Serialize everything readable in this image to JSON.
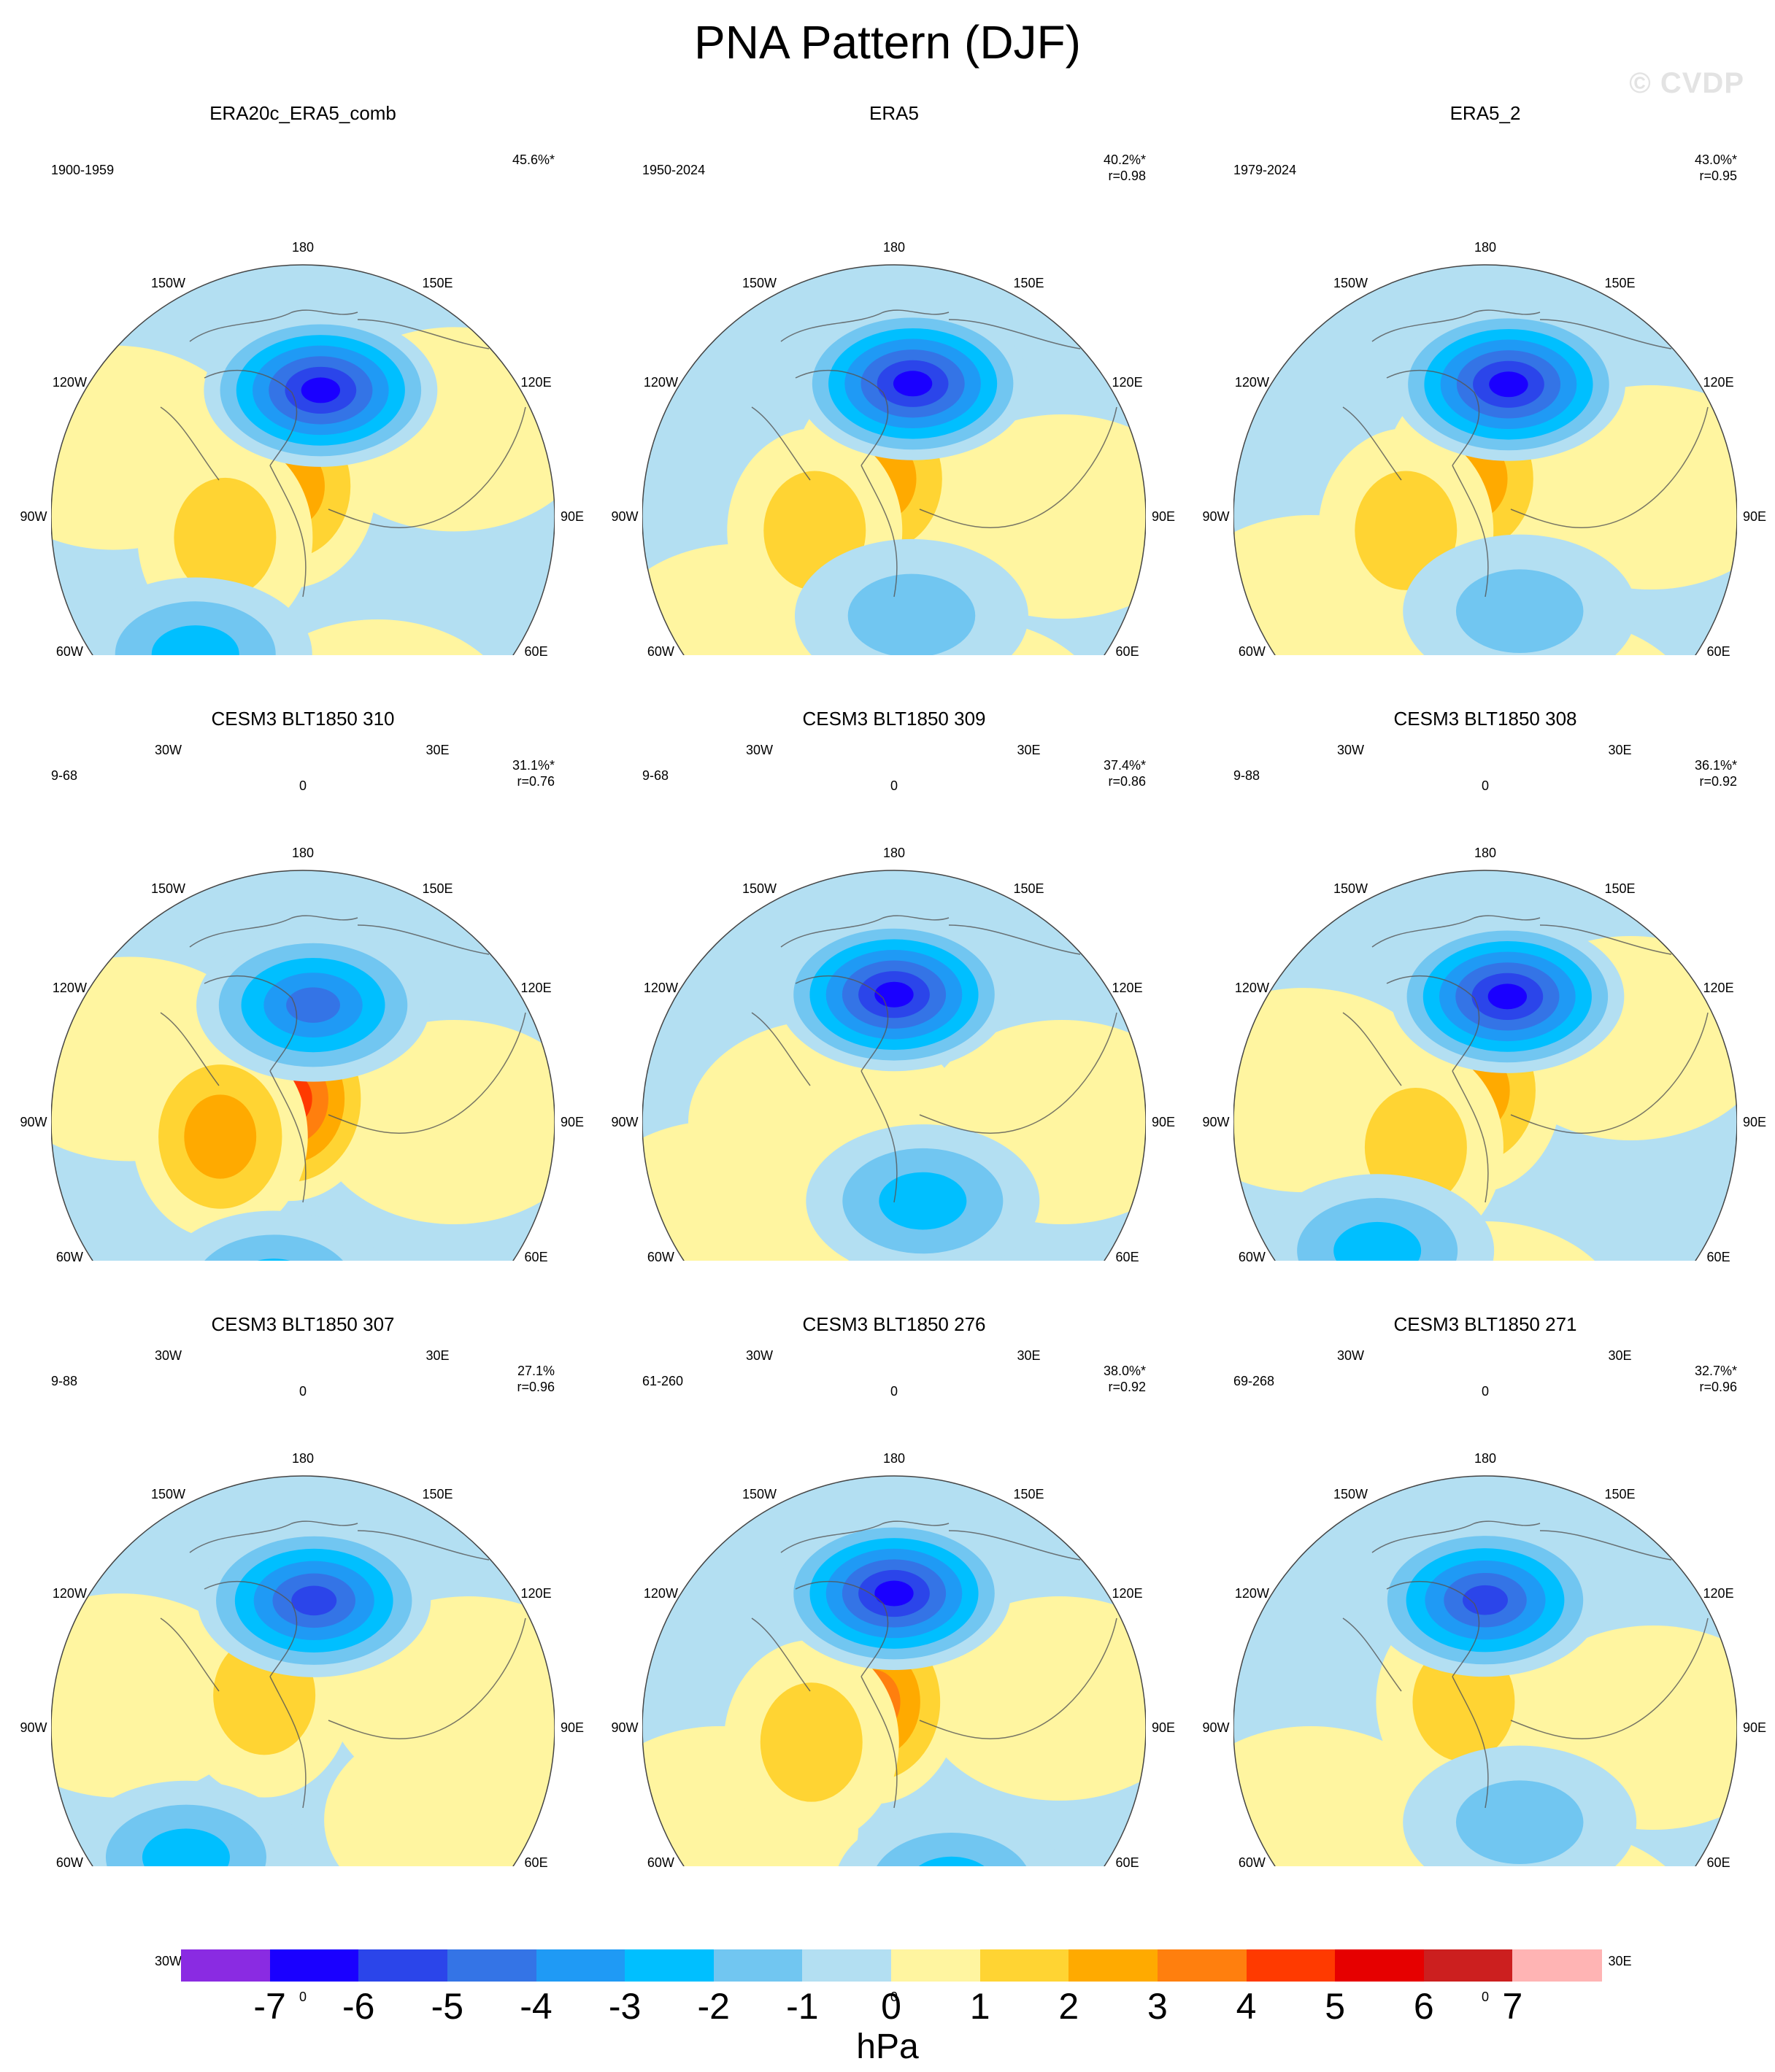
{
  "title": "PNA Pattern (DJF)",
  "watermark": "© CVDP",
  "colors": {
    "neg7": "#8a2be2",
    "neg6": "#1a00ff",
    "neg5": "#2b45ea",
    "neg4": "#3474e6",
    "neg3": "#1f9af5",
    "neg2": "#00bfff",
    "neg1b": "#71c6f1",
    "neg1": "#b3dff2",
    "pos0": "#fff5a0",
    "pos1": "#ffd433",
    "pos2": "#ffaa00",
    "pos3": "#ff7f0e",
    "pos4": "#ff3a00",
    "pos5": "#e60000",
    "pos6": "#cc1f1f",
    "pos7": "#ffb4b4",
    "coast": "#555555"
  },
  "longitude_labels": [
    "180",
    "150E",
    "120E",
    "90E",
    "60E",
    "30E",
    "0",
    "30W",
    "60W",
    "90W",
    "120W",
    "150W"
  ],
  "panels": [
    {
      "title": "ERA20c_ERA5_comb",
      "years": "1900-1959",
      "pct": "45.6%*",
      "corr": "",
      "lows": [
        {
          "lon": 172,
          "lat": 52,
          "level": 6
        },
        {
          "lon": 322,
          "lat": 38,
          "level": 2
        }
      ],
      "highs": [
        {
          "lon": 205,
          "lat": 80,
          "level": 2
        },
        {
          "lon": 285,
          "lat": 66,
          "level": 1
        }
      ],
      "neutral_pos": [
        {
          "lon": 120,
          "lat": 38
        },
        {
          "lon": 250,
          "lat": 30
        },
        {
          "lon": 20,
          "lat": 25
        }
      ]
    },
    {
      "title": "ERA5",
      "years": "1950-2024",
      "pct": "40.2%*",
      "corr": "r=0.98",
      "lows": [
        {
          "lon": 172,
          "lat": 50,
          "level": 6
        },
        {
          "lon": 10,
          "lat": 60,
          "level": 1
        }
      ],
      "highs": [
        {
          "lon": 200,
          "lat": 78,
          "level": 2
        },
        {
          "lon": 280,
          "lat": 66,
          "level": 1
        }
      ],
      "neutral_pos": [
        {
          "lon": 90,
          "lat": 40
        },
        {
          "lon": 310,
          "lat": 30
        },
        {
          "lon": 20,
          "lat": 25
        }
      ]
    },
    {
      "title": "ERA5_2",
      "years": "1979-2024",
      "pct": "43.0%*",
      "corr": "r=0.95",
      "lows": [
        {
          "lon": 170,
          "lat": 50,
          "level": 6
        },
        {
          "lon": 20,
          "lat": 60,
          "level": 1
        }
      ],
      "highs": [
        {
          "lon": 200,
          "lat": 78,
          "level": 2
        },
        {
          "lon": 280,
          "lat": 66,
          "level": 1
        }
      ],
      "neutral_pos": [
        {
          "lon": 100,
          "lat": 40
        },
        {
          "lon": 300,
          "lat": 30
        },
        {
          "lon": 20,
          "lat": 25
        }
      ]
    },
    {
      "title": "CESM3 BLT1850 310",
      "years": "9-68",
      "pct": "31.1%*",
      "corr": "r=0.76",
      "lows": [
        {
          "lon": 175,
          "lat": 55,
          "level": 4
        },
        {
          "lon": 350,
          "lat": 40,
          "level": 2
        }
      ],
      "highs": [
        {
          "lon": 210,
          "lat": 82,
          "level": 4
        },
        {
          "lon": 280,
          "lat": 65,
          "level": 2
        }
      ],
      "neutral_pos": [
        {
          "lon": 90,
          "lat": 45
        },
        {
          "lon": 250,
          "lat": 35
        }
      ]
    },
    {
      "title": "CESM3 BLT1850 309",
      "years": "9-68",
      "pct": "37.4%*",
      "corr": "r=0.86",
      "lows": [
        {
          "lon": 180,
          "lat": 52,
          "level": 6
        },
        {
          "lon": 20,
          "lat": 65,
          "level": 2
        }
      ],
      "highs": [],
      "neutral_pos": [
        {
          "lon": 90,
          "lat": 40
        },
        {
          "lon": 300,
          "lat": 30
        },
        {
          "lon": 270,
          "lat": 70
        }
      ]
    },
    {
      "title": "CESM3 BLT1850 308",
      "years": "9-88",
      "pct": "36.1%*",
      "corr": "r=0.92",
      "lows": [
        {
          "lon": 170,
          "lat": 52,
          "level": 6
        },
        {
          "lon": 320,
          "lat": 40,
          "level": 2
        }
      ],
      "highs": [
        {
          "lon": 200,
          "lat": 80,
          "level": 2
        },
        {
          "lon": 290,
          "lat": 68,
          "level": 1
        }
      ],
      "neutral_pos": [
        {
          "lon": 120,
          "lat": 40
        },
        {
          "lon": 260,
          "lat": 35
        },
        {
          "lon": 0,
          "lat": 30
        }
      ]
    },
    {
      "title": "CESM3 BLT1850 307",
      "years": "9-88",
      "pct": "27.1%",
      "corr": "r=0.96",
      "lows": [
        {
          "lon": 175,
          "lat": 52,
          "level": 5
        },
        {
          "lon": 318,
          "lat": 38,
          "level": 2
        }
      ],
      "highs": [
        {
          "lon": 230,
          "lat": 75,
          "level": 1
        }
      ],
      "neutral_pos": [
        {
          "lon": 100,
          "lat": 40
        },
        {
          "lon": 260,
          "lat": 35
        },
        {
          "lon": 60,
          "lat": 35
        }
      ]
    },
    {
      "title": "CESM3 BLT1850 276",
      "years": "61-260",
      "pct": "38.0%*",
      "corr": "r=0.92",
      "lows": [
        {
          "lon": 180,
          "lat": 50,
          "level": 6
        },
        {
          "lon": 20,
          "lat": 40,
          "level": 2
        }
      ],
      "highs": [
        {
          "lon": 220,
          "lat": 80,
          "level": 3
        },
        {
          "lon": 280,
          "lat": 65,
          "level": 1
        }
      ],
      "neutral_pos": [
        {
          "lon": 100,
          "lat": 40
        },
        {
          "lon": 300,
          "lat": 30
        }
      ]
    },
    {
      "title": "CESM3 BLT1850 271",
      "years": "69-268",
      "pct": "32.7%*",
      "corr": "r=0.96",
      "lows": [
        {
          "lon": 180,
          "lat": 52,
          "level": 5
        },
        {
          "lon": 20,
          "lat": 60,
          "level": 1
        }
      ],
      "highs": [
        {
          "lon": 220,
          "lat": 80,
          "level": 1
        }
      ],
      "neutral_pos": [
        {
          "lon": 90,
          "lat": 40
        },
        {
          "lon": 300,
          "lat": 30
        },
        {
          "lon": 20,
          "lat": 25
        }
      ]
    }
  ],
  "colorbar": {
    "units": "hPa",
    "ticks": [
      "-7",
      "-6",
      "-5",
      "-4",
      "-3",
      "-2",
      "-1",
      "0",
      "1",
      "2",
      "3",
      "4",
      "5",
      "6",
      "7"
    ],
    "boxes": [
      "#8a2be2",
      "#1a00ff",
      "#2b45ea",
      "#3474e6",
      "#1f9af5",
      "#00bfff",
      "#71c6f1",
      "#b3dff2",
      "#fff5a0",
      "#ffd433",
      "#ffaa00",
      "#ff7f0e",
      "#ff3a00",
      "#e60000",
      "#cc1f1f",
      "#ffb4b4"
    ]
  }
}
